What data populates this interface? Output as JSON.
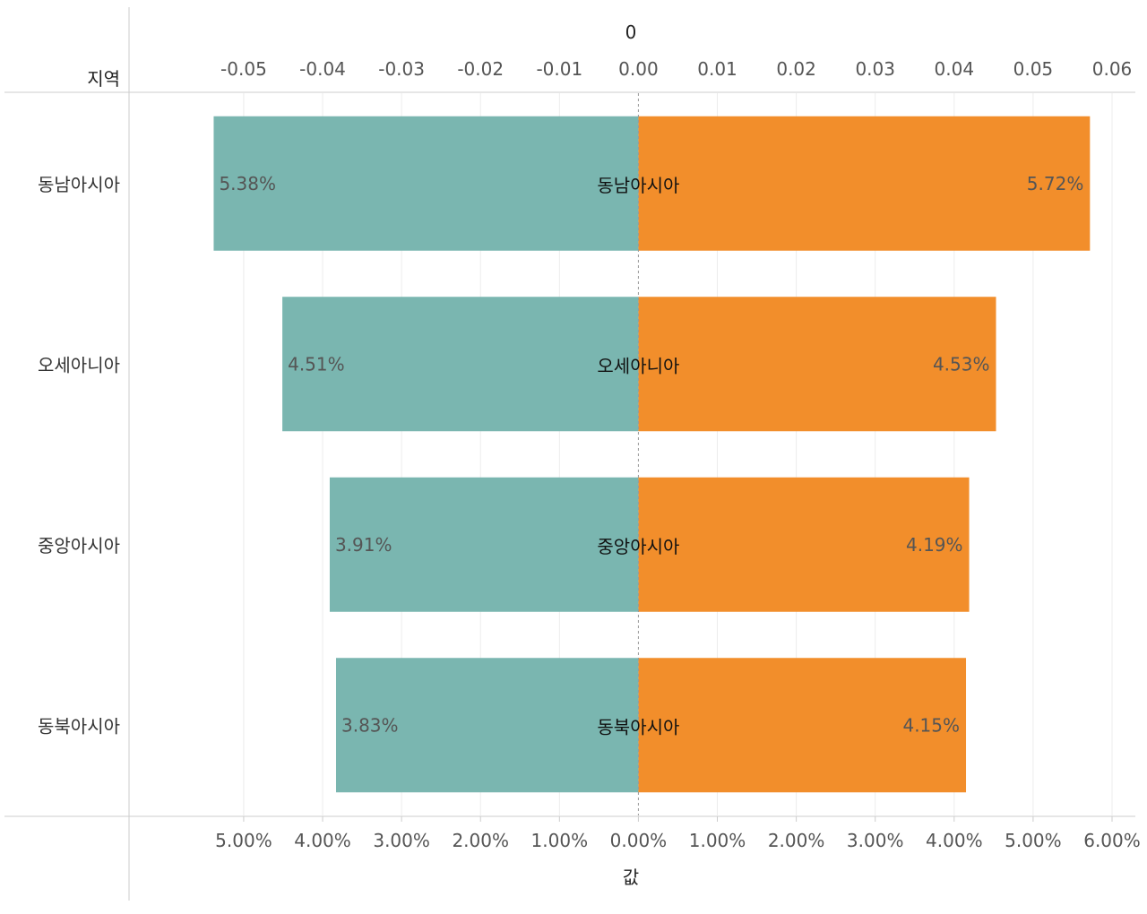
{
  "chart_data": {
    "type": "bar",
    "orientation": "horizontal-diverging",
    "row_header": "지역",
    "top_axis_title": "0",
    "bottom_axis_title": "값",
    "categories": [
      "동남아시아",
      "오세아니아",
      "중앙아시아",
      "동북아시아"
    ],
    "series": [
      {
        "name": "left",
        "color": "#7AB6B0",
        "values": [
          0.0538,
          0.0451,
          0.0391,
          0.0383
        ],
        "labels": [
          "5.38%",
          "4.51%",
          "3.91%",
          "3.83%"
        ]
      },
      {
        "name": "right",
        "color": "#F28E2B",
        "values": [
          0.0572,
          0.0453,
          0.0419,
          0.0415
        ],
        "labels": [
          "5.72%",
          "4.53%",
          "4.19%",
          "4.15%"
        ]
      }
    ],
    "top_ticks": [
      "-0.05",
      "-0.04",
      "-0.03",
      "-0.02",
      "-0.01",
      "0.00",
      "0.01",
      "0.02",
      "0.03",
      "0.04",
      "0.05",
      "0.06"
    ],
    "bottom_ticks": [
      "5.00%",
      "4.00%",
      "3.00%",
      "2.00%",
      "1.00%",
      "0.00%",
      "1.00%",
      "2.00%",
      "3.00%",
      "4.00%",
      "5.00%",
      "6.00%"
    ],
    "xlim": [
      -0.0593,
      0.06
    ]
  }
}
